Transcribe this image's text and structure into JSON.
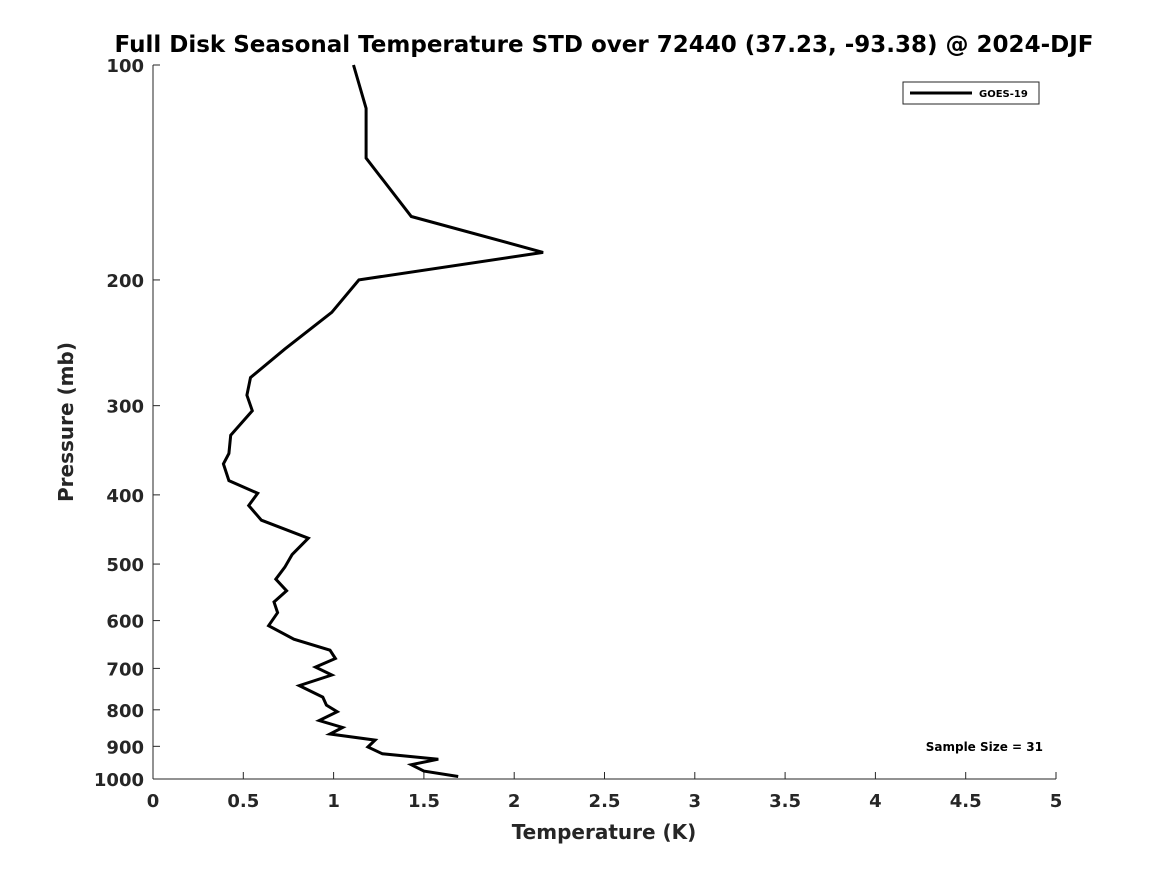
{
  "chart_data": {
    "type": "line",
    "title": "Full Disk Seasonal Temperature STD over 72440 (37.23, -93.38) @ 2024-DJF",
    "xlabel": "Temperature (K)",
    "ylabel": "Pressure (mb)",
    "xlim": [
      0,
      5
    ],
    "ylim": [
      100,
      1000
    ],
    "y_scale": "log",
    "y_reversed": true,
    "x_ticks": [
      0,
      0.5,
      1,
      1.5,
      2,
      2.5,
      3,
      3.5,
      4,
      4.5,
      5
    ],
    "x_tick_labels": [
      "0",
      "0.5",
      "1",
      "1.5",
      "2",
      "2.5",
      "3",
      "3.5",
      "4",
      "4.5",
      "5"
    ],
    "y_ticks": [
      100,
      200,
      300,
      400,
      500,
      600,
      700,
      800,
      900,
      1000
    ],
    "y_tick_labels": [
      "100",
      "200",
      "300",
      "400",
      "500",
      "600",
      "700",
      "800",
      "900",
      "1000"
    ],
    "legend_position": "top-right",
    "series": [
      {
        "name": "GOES-19",
        "color": "#000000",
        "points": [
          [
            1.11,
            100
          ],
          [
            1.18,
            115
          ],
          [
            1.18,
            135
          ],
          [
            1.43,
            163
          ],
          [
            2.16,
            183
          ],
          [
            1.14,
            200
          ],
          [
            0.99,
            222
          ],
          [
            0.73,
            250
          ],
          [
            0.54,
            274
          ],
          [
            0.52,
            290
          ],
          [
            0.55,
            305
          ],
          [
            0.43,
            330
          ],
          [
            0.42,
            350
          ],
          [
            0.39,
            362
          ],
          [
            0.42,
            382
          ],
          [
            0.58,
            398
          ],
          [
            0.53,
            414
          ],
          [
            0.6,
            434
          ],
          [
            0.86,
            460
          ],
          [
            0.77,
            485
          ],
          [
            0.73,
            505
          ],
          [
            0.68,
            525
          ],
          [
            0.74,
            545
          ],
          [
            0.67,
            565
          ],
          [
            0.69,
            585
          ],
          [
            0.64,
            610
          ],
          [
            0.78,
            637
          ],
          [
            0.98,
            660
          ],
          [
            1.01,
            678
          ],
          [
            0.9,
            697
          ],
          [
            0.99,
            715
          ],
          [
            0.81,
            740
          ],
          [
            0.94,
            768
          ],
          [
            0.96,
            788
          ],
          [
            1.02,
            805
          ],
          [
            0.92,
            828
          ],
          [
            1.05,
            847
          ],
          [
            0.98,
            865
          ],
          [
            1.23,
            882
          ],
          [
            1.19,
            902
          ],
          [
            1.27,
            922
          ],
          [
            1.58,
            938
          ],
          [
            1.43,
            955
          ],
          [
            1.5,
            975
          ],
          [
            1.69,
            992
          ]
        ]
      }
    ],
    "annotations": [
      "Sample Size = 31"
    ]
  }
}
